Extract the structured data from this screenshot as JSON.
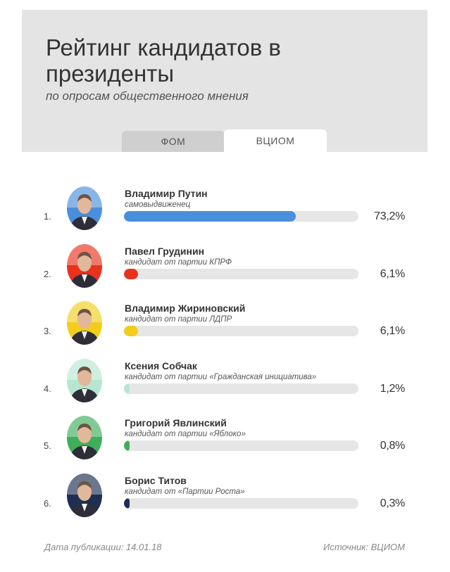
{
  "header": {
    "title": "Рейтинг кандидатов в президенты",
    "subtitle": "по опросам общественного мнения"
  },
  "tabs": [
    {
      "label": "ФОМ",
      "active": false
    },
    {
      "label": "ВЦИОМ",
      "active": true
    }
  ],
  "chart_data": {
    "type": "bar",
    "orientation": "horizontal",
    "title": "Рейтинг кандидатов в президенты",
    "subtitle": "по опросам общественного мнения",
    "xlim": [
      0,
      100
    ],
    "unit": "%",
    "items": [
      {
        "rank": "1.",
        "name": "Владимир Путин",
        "party": "самовыдвиженец",
        "value": 73.2,
        "value_label": "73,2%",
        "color": "#4a8fdc",
        "accent": "#4a8fdc"
      },
      {
        "rank": "2.",
        "name": "Павел Грудинин",
        "party": "кандидат от партии КПРФ",
        "value": 6.1,
        "value_label": "6,1%",
        "color": "#e8321e",
        "accent": "#e8321e"
      },
      {
        "rank": "3.",
        "name": "Владимир Жириновский",
        "party": "кандидат от партии ЛДПР",
        "value": 6.1,
        "value_label": "6,1%",
        "color": "#f2cd1c",
        "accent": "#f2cd1c"
      },
      {
        "rank": "4.",
        "name": "Ксения Собчак",
        "party": "кандидат от партии «Гражданская инициатива»",
        "value": 1.2,
        "value_label": "1,2%",
        "color": "#b6e6d2",
        "accent": "#b6e6d2"
      },
      {
        "rank": "5.",
        "name": "Григорий Явлинский",
        "party": "кандидат от партии «Яблоко»",
        "value": 0.8,
        "value_label": "0,8%",
        "color": "#3fae5a",
        "accent": "#3fae5a"
      },
      {
        "rank": "6.",
        "name": "Борис Титов",
        "party": "кандидат от «Партии Роста»",
        "value": 0.3,
        "value_label": "0,3%",
        "color": "#1e2f52",
        "accent": "#1e2f52"
      }
    ]
  },
  "footer": {
    "date": "Дата публикации: 14.01.18",
    "source": "Источник: ВЦИОМ"
  }
}
